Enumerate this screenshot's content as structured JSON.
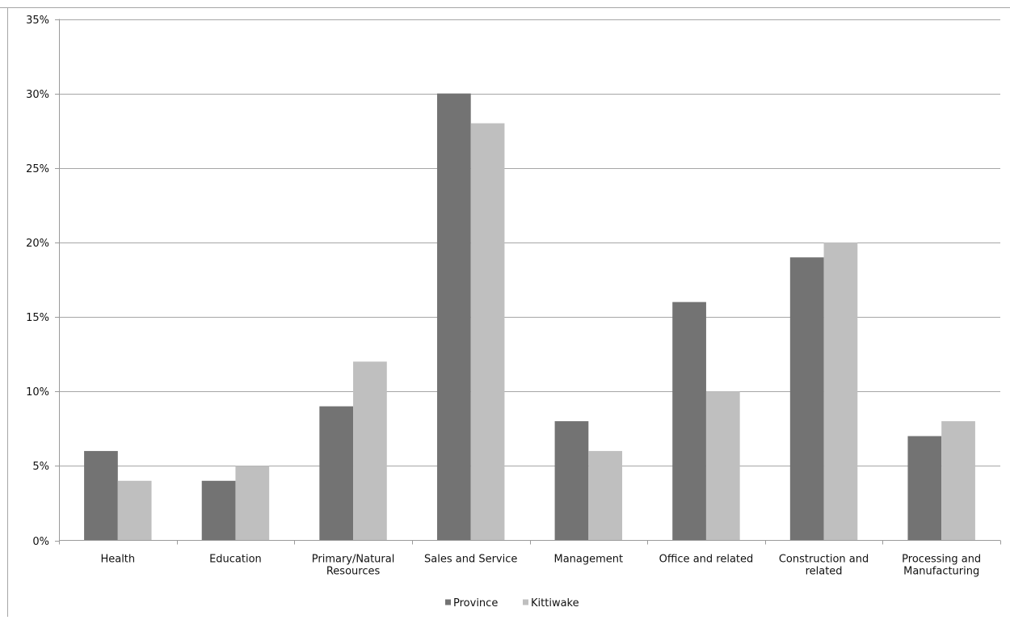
{
  "chart_data": {
    "type": "bar",
    "categories": [
      [
        "Health"
      ],
      [
        "Education"
      ],
      [
        "Primary/Natural",
        "Resources"
      ],
      [
        "Sales and Service"
      ],
      [
        "Management"
      ],
      [
        "Office and related"
      ],
      [
        "Construction and",
        "related"
      ],
      [
        "Processing and",
        "Manufacturing"
      ]
    ],
    "series": [
      {
        "name": "Province",
        "color": "#737373",
        "values": [
          6,
          4,
          9,
          30,
          8,
          16,
          19,
          7
        ]
      },
      {
        "name": "Kittiwake",
        "color": "#bfbfbf",
        "values": [
          4,
          5,
          12,
          28,
          6,
          10,
          20,
          8
        ]
      }
    ],
    "y_ticks": [
      "0%",
      "5%",
      "10%",
      "15%",
      "20%",
      "25%",
      "30%",
      "35%"
    ],
    "ylim": [
      0,
      35
    ],
    "ytick_step": 5,
    "title": "",
    "xlabel": "",
    "ylabel": "",
    "grid": true,
    "legend_position": "bottom"
  }
}
